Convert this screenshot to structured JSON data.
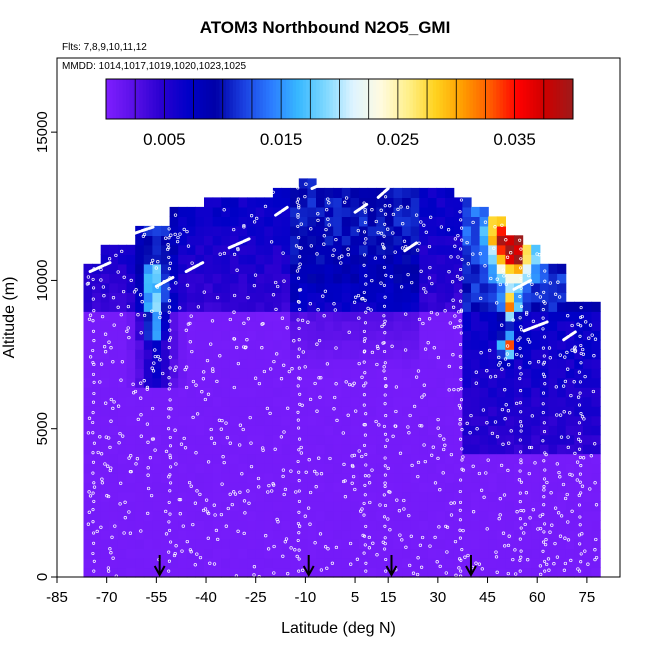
{
  "chart_data": {
    "type": "heatmap",
    "title": "ATOM3 Northbound N2O5_GMI",
    "flights_note": "Flts: 7,8,9,10,11,12",
    "dates_note": "MMDD: 1014,1017,1019,1020,1023,1025",
    "xlabel": "Latitude (deg N)",
    "ylabel": "Altitude (m)",
    "xlim": [
      -85,
      85
    ],
    "ylim": [
      0,
      17500
    ],
    "x_ticks": [
      -85,
      -70,
      -55,
      -40,
      -25,
      -10,
      5,
      15,
      30,
      45,
      60,
      75
    ],
    "y_ticks": [
      0,
      5000,
      10000,
      15000
    ],
    "colorbar": {
      "range": [
        0,
        0.04
      ],
      "tick_values": [
        0.005,
        0.015,
        0.025,
        0.035
      ],
      "tick_labels": [
        "0.005",
        "0.015",
        "0.025",
        "0.035"
      ],
      "colors": [
        "#7f1fff",
        "#5a10e8",
        "#2a00d0",
        "#0000c8",
        "#0000a8",
        "#1a3fe0",
        "#2b7bff",
        "#38b8ff",
        "#7fd8ff",
        "#dff4ff",
        "#fffbe0",
        "#fff08a",
        "#ffd21e",
        "#ff9c00",
        "#ff5a00",
        "#ff0000",
        "#cc0000",
        "#9e1b1b"
      ]
    },
    "colors": {
      "background": "#7f1fff",
      "low": "#7f1fff",
      "mid": "#0000c8",
      "high": "#cc0000",
      "markers": "#ffffff"
    },
    "profile_markers_lat": [
      -54,
      -9,
      16,
      40
    ]
  }
}
